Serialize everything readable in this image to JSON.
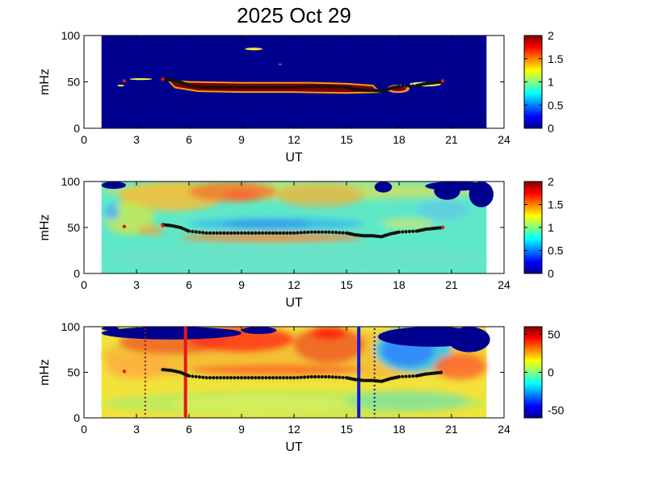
{
  "chart_data": [
    {
      "type": "heatmap",
      "title": "2025 Oct 29",
      "xlabel": "UT",
      "ylabel": "mHz",
      "xlim": [
        0,
        24
      ],
      "ylim": [
        0,
        100
      ],
      "xticks": [
        0,
        3,
        6,
        9,
        12,
        15,
        18,
        21,
        24
      ],
      "yticks": [
        0,
        50,
        100
      ],
      "data_span_ut": [
        1,
        23
      ],
      "colorbar": {
        "min": 0,
        "max": 2,
        "ticks": [
          "0",
          "0.5",
          "1",
          "1.5",
          "2"
        ],
        "colormap": "jet"
      },
      "markers": {
        "isolated": [
          [
            2.3,
            51
          ],
          [
            4.5,
            53
          ],
          [
            20.5,
            51
          ]
        ]
      }
    },
    {
      "type": "heatmap",
      "title": "",
      "xlabel": "UT",
      "ylabel": "mHz",
      "xlim": [
        0,
        24
      ],
      "ylim": [
        0,
        100
      ],
      "xticks": [
        0,
        3,
        6,
        9,
        12,
        15,
        18,
        21,
        24
      ],
      "yticks": [
        0,
        50,
        100
      ],
      "data_span_ut": [
        1,
        23
      ],
      "colorbar": {
        "min": 0,
        "max": 2,
        "ticks": [
          "0",
          "0.5",
          "1",
          "1.5",
          "2"
        ],
        "colormap": "jet"
      },
      "markers": {
        "isolated": [
          [
            2.3,
            51
          ],
          [
            4.5,
            52
          ],
          [
            20.5,
            50
          ]
        ]
      }
    },
    {
      "type": "heatmap",
      "title": "",
      "xlabel": "UT",
      "ylabel": "mHz",
      "xlim": [
        0,
        24
      ],
      "ylim": [
        0,
        100
      ],
      "xticks": [
        0,
        3,
        6,
        9,
        12,
        15,
        18,
        21,
        24
      ],
      "yticks": [
        0,
        50,
        100
      ],
      "data_span_ut": [
        1,
        23
      ],
      "colorbar": {
        "min": -60,
        "max": 60,
        "ticks": [
          "50",
          "0",
          "-50"
        ],
        "tick_values": [
          50,
          0,
          -50
        ],
        "colormap": "jet"
      },
      "markers": {
        "isolated": [
          [
            2.3,
            51
          ]
        ]
      },
      "vertical_lines": [
        {
          "ut": 5.8,
          "color": "#e8141c",
          "style": "solid"
        },
        {
          "ut": 15.7,
          "color": "#1414d8",
          "style": "solid"
        },
        {
          "ut": 3.5,
          "color": "#8b1a1a",
          "style": "dotted"
        },
        {
          "ut": 16.6,
          "color": "#1a1a8b",
          "style": "dotted"
        }
      ]
    }
  ],
  "ridge": {
    "ut": [
      4.5,
      5.0,
      5.5,
      6.0,
      7.0,
      8.0,
      9.0,
      10.0,
      11.0,
      12.0,
      13.0,
      14.0,
      15.0,
      15.5,
      16.0,
      16.5,
      17.0,
      17.5,
      18.0,
      19.0,
      19.5,
      20.0,
      20.5
    ],
    "mhz": [
      53,
      52,
      50,
      46,
      44,
      44,
      44,
      44,
      44,
      44,
      45,
      45,
      44,
      42,
      41,
      41,
      40,
      43,
      45,
      46,
      48,
      49,
      50
    ]
  }
}
